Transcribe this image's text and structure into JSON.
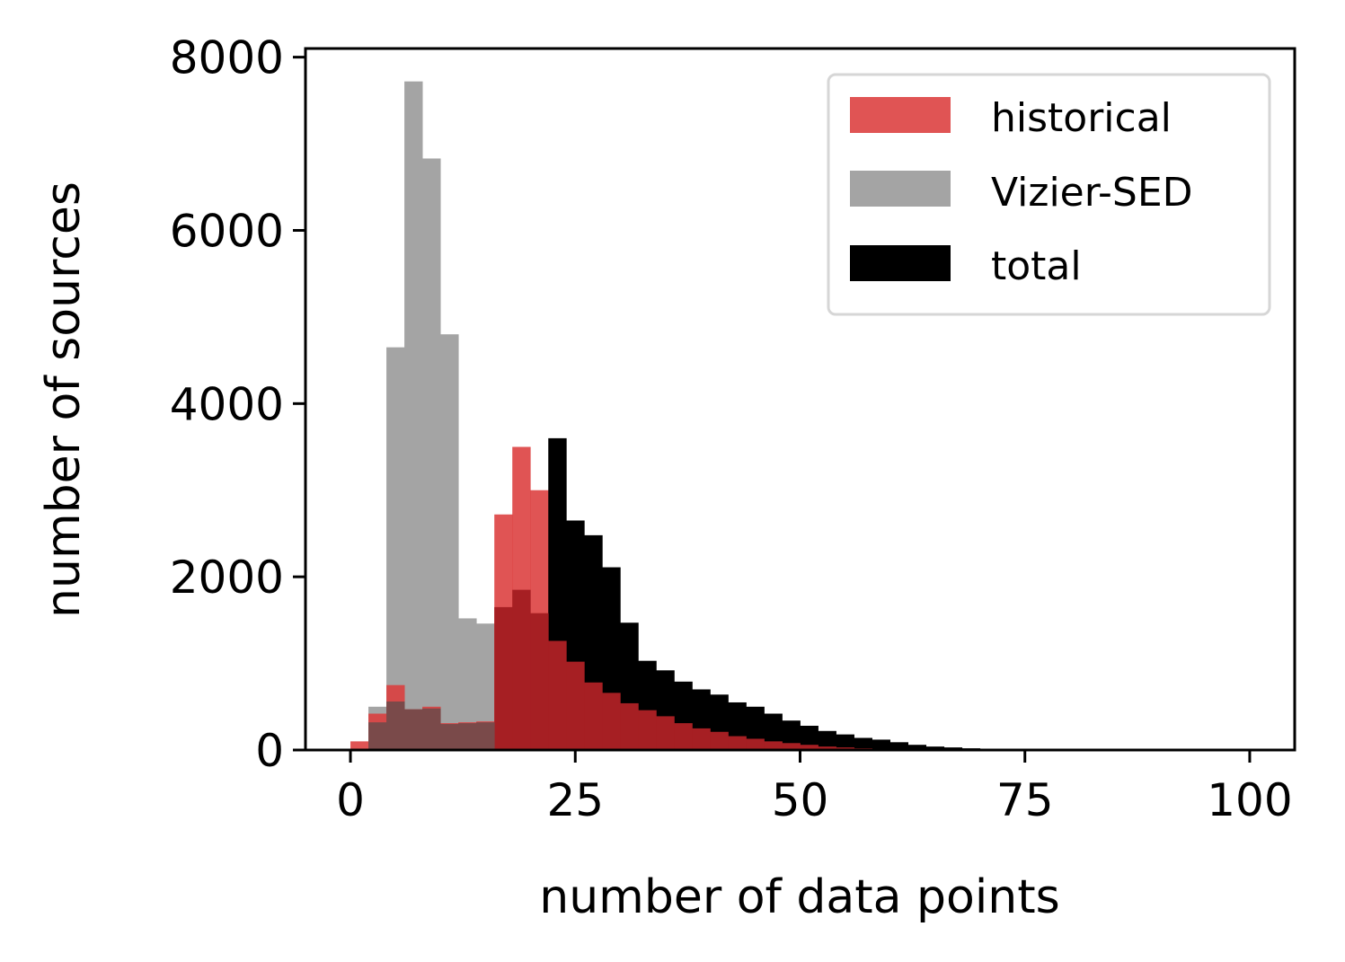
{
  "chart_data": {
    "type": "histogram",
    "title": "",
    "xlabel": "number of  data points",
    "ylabel": "number of sources",
    "xlim": [
      -5,
      105
    ],
    "ylim": [
      0,
      8100
    ],
    "xticks": [
      0,
      25,
      50,
      75,
      100
    ],
    "yticks": [
      0,
      2000,
      4000,
      6000,
      8000
    ],
    "bin_width": 2,
    "bin_edges_start": 0,
    "legend_position": "upper right",
    "series": [
      {
        "name": "Vizier-SED",
        "color": "#a4a4a4",
        "alpha": 1.0,
        "values": [
          0,
          500,
          4650,
          7720,
          6830,
          4800,
          1520,
          1460,
          350,
          0,
          0
        ]
      },
      {
        "name": "historical",
        "color": "#dc3c3c",
        "alpha": 0.88,
        "values": [
          100,
          420,
          750,
          470,
          500,
          310,
          320,
          330,
          2720,
          3500,
          3000,
          2250,
          1800,
          1200,
          850,
          600,
          450,
          350,
          250,
          150,
          100,
          60,
          30,
          10
        ]
      },
      {
        "name": "total",
        "color": "#000000",
        "alpha": 1.0,
        "values": [
          0,
          0,
          0,
          0,
          0,
          0,
          0,
          0,
          0,
          0,
          0,
          3600,
          2650,
          2480,
          2110,
          1470,
          1030,
          920,
          790,
          700,
          640,
          550,
          500,
          420,
          340,
          280,
          220,
          180,
          140,
          120,
          90,
          60,
          40,
          30,
          20,
          10,
          5,
          5
        ]
      },
      {
        "name": "",
        "color": "#a61f23",
        "alpha": 1.0,
        "values": [
          0,
          0,
          0,
          0,
          0,
          0,
          0,
          0,
          1650,
          1850,
          1580,
          1260,
          1020,
          780,
          660,
          540,
          460,
          390,
          310,
          250,
          210,
          160,
          130,
          100,
          80,
          60,
          40,
          30,
          20,
          12,
          8,
          5,
          3,
          2,
          1,
          1,
          0,
          0
        ]
      },
      {
        "name": "",
        "color": "#7a4a4a",
        "alpha": 1.0,
        "values": [
          0,
          320,
          560,
          470,
          480,
          300,
          310,
          320,
          0,
          0
        ]
      }
    ]
  }
}
